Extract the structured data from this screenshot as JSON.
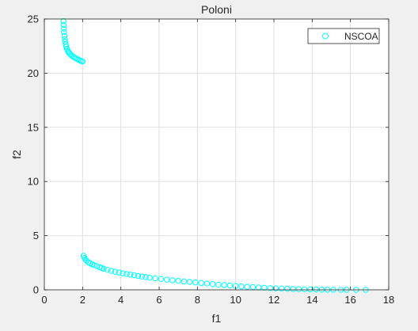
{
  "figure": {
    "background": "#f0f0f0",
    "axes_background": "#ffffff"
  },
  "chart_data": {
    "type": "scatter",
    "title": "Poloni",
    "xlabel": "f1",
    "ylabel": "f2",
    "xlim": [
      0,
      18
    ],
    "ylim": [
      0,
      25
    ],
    "xticks": [
      0,
      2,
      4,
      6,
      8,
      10,
      12,
      14,
      16,
      18
    ],
    "yticks": [
      0,
      5,
      10,
      15,
      20,
      25
    ],
    "grid": true,
    "legend_position": "top-right",
    "marker": "circle-open",
    "series": [
      {
        "name": "NSCOA",
        "color": "#00ffff",
        "segments": [
          {
            "x": [
              1.0,
              1.01,
              1.02,
              1.03,
              1.05,
              1.07,
              1.09,
              1.12,
              1.15,
              1.18,
              1.22,
              1.26,
              1.31,
              1.36,
              1.42,
              1.48,
              1.55,
              1.62,
              1.7,
              1.78,
              1.86,
              1.94,
              2.0
            ],
            "y": [
              24.8,
              24.45,
              24.1,
              23.8,
              23.45,
              23.15,
              22.9,
              22.65,
              22.45,
              22.25,
              22.1,
              21.95,
              21.85,
              21.75,
              21.65,
              21.55,
              21.48,
              21.4,
              21.32,
              21.25,
              21.18,
              21.12,
              21.08
            ]
          },
          {
            "x": [
              2.05,
              2.1,
              2.15,
              2.2,
              2.3,
              2.4,
              2.5,
              2.6,
              2.75,
              2.9,
              3.0,
              3.1,
              3.3,
              3.5,
              3.7,
              3.9,
              4.1,
              4.3,
              4.5,
              4.7,
              4.9,
              5.1,
              5.3,
              5.5,
              5.8,
              6.1,
              6.4,
              6.7,
              7.0,
              7.3,
              7.6,
              7.9,
              8.2,
              8.5,
              8.8,
              9.1,
              9.4,
              9.7,
              10.0,
              10.3,
              10.6,
              10.9,
              11.2,
              11.5,
              11.8,
              12.1,
              12.4,
              12.7,
              13.0,
              13.3,
              13.6,
              13.9,
              14.2,
              14.5,
              14.8,
              15.1,
              15.5,
              15.8,
              16.3,
              16.8
            ],
            "y": [
              3.15,
              2.95,
              2.8,
              2.7,
              2.55,
              2.45,
              2.35,
              2.28,
              2.18,
              2.08,
              2.02,
              1.95,
              1.85,
              1.75,
              1.67,
              1.6,
              1.52,
              1.46,
              1.4,
              1.34,
              1.28,
              1.23,
              1.18,
              1.13,
              1.06,
              1.0,
              0.94,
              0.88,
              0.83,
              0.78,
              0.73,
              0.68,
              0.63,
              0.58,
              0.53,
              0.48,
              0.44,
              0.4,
              0.36,
              0.32,
              0.28,
              0.25,
              0.22,
              0.19,
              0.16,
              0.14,
              0.12,
              0.1,
              0.08,
              0.06,
              0.05,
              0.04,
              0.03,
              0.02,
              0.01,
              0.01,
              0.005,
              0.0,
              0.0,
              0.0
            ]
          }
        ]
      }
    ]
  }
}
